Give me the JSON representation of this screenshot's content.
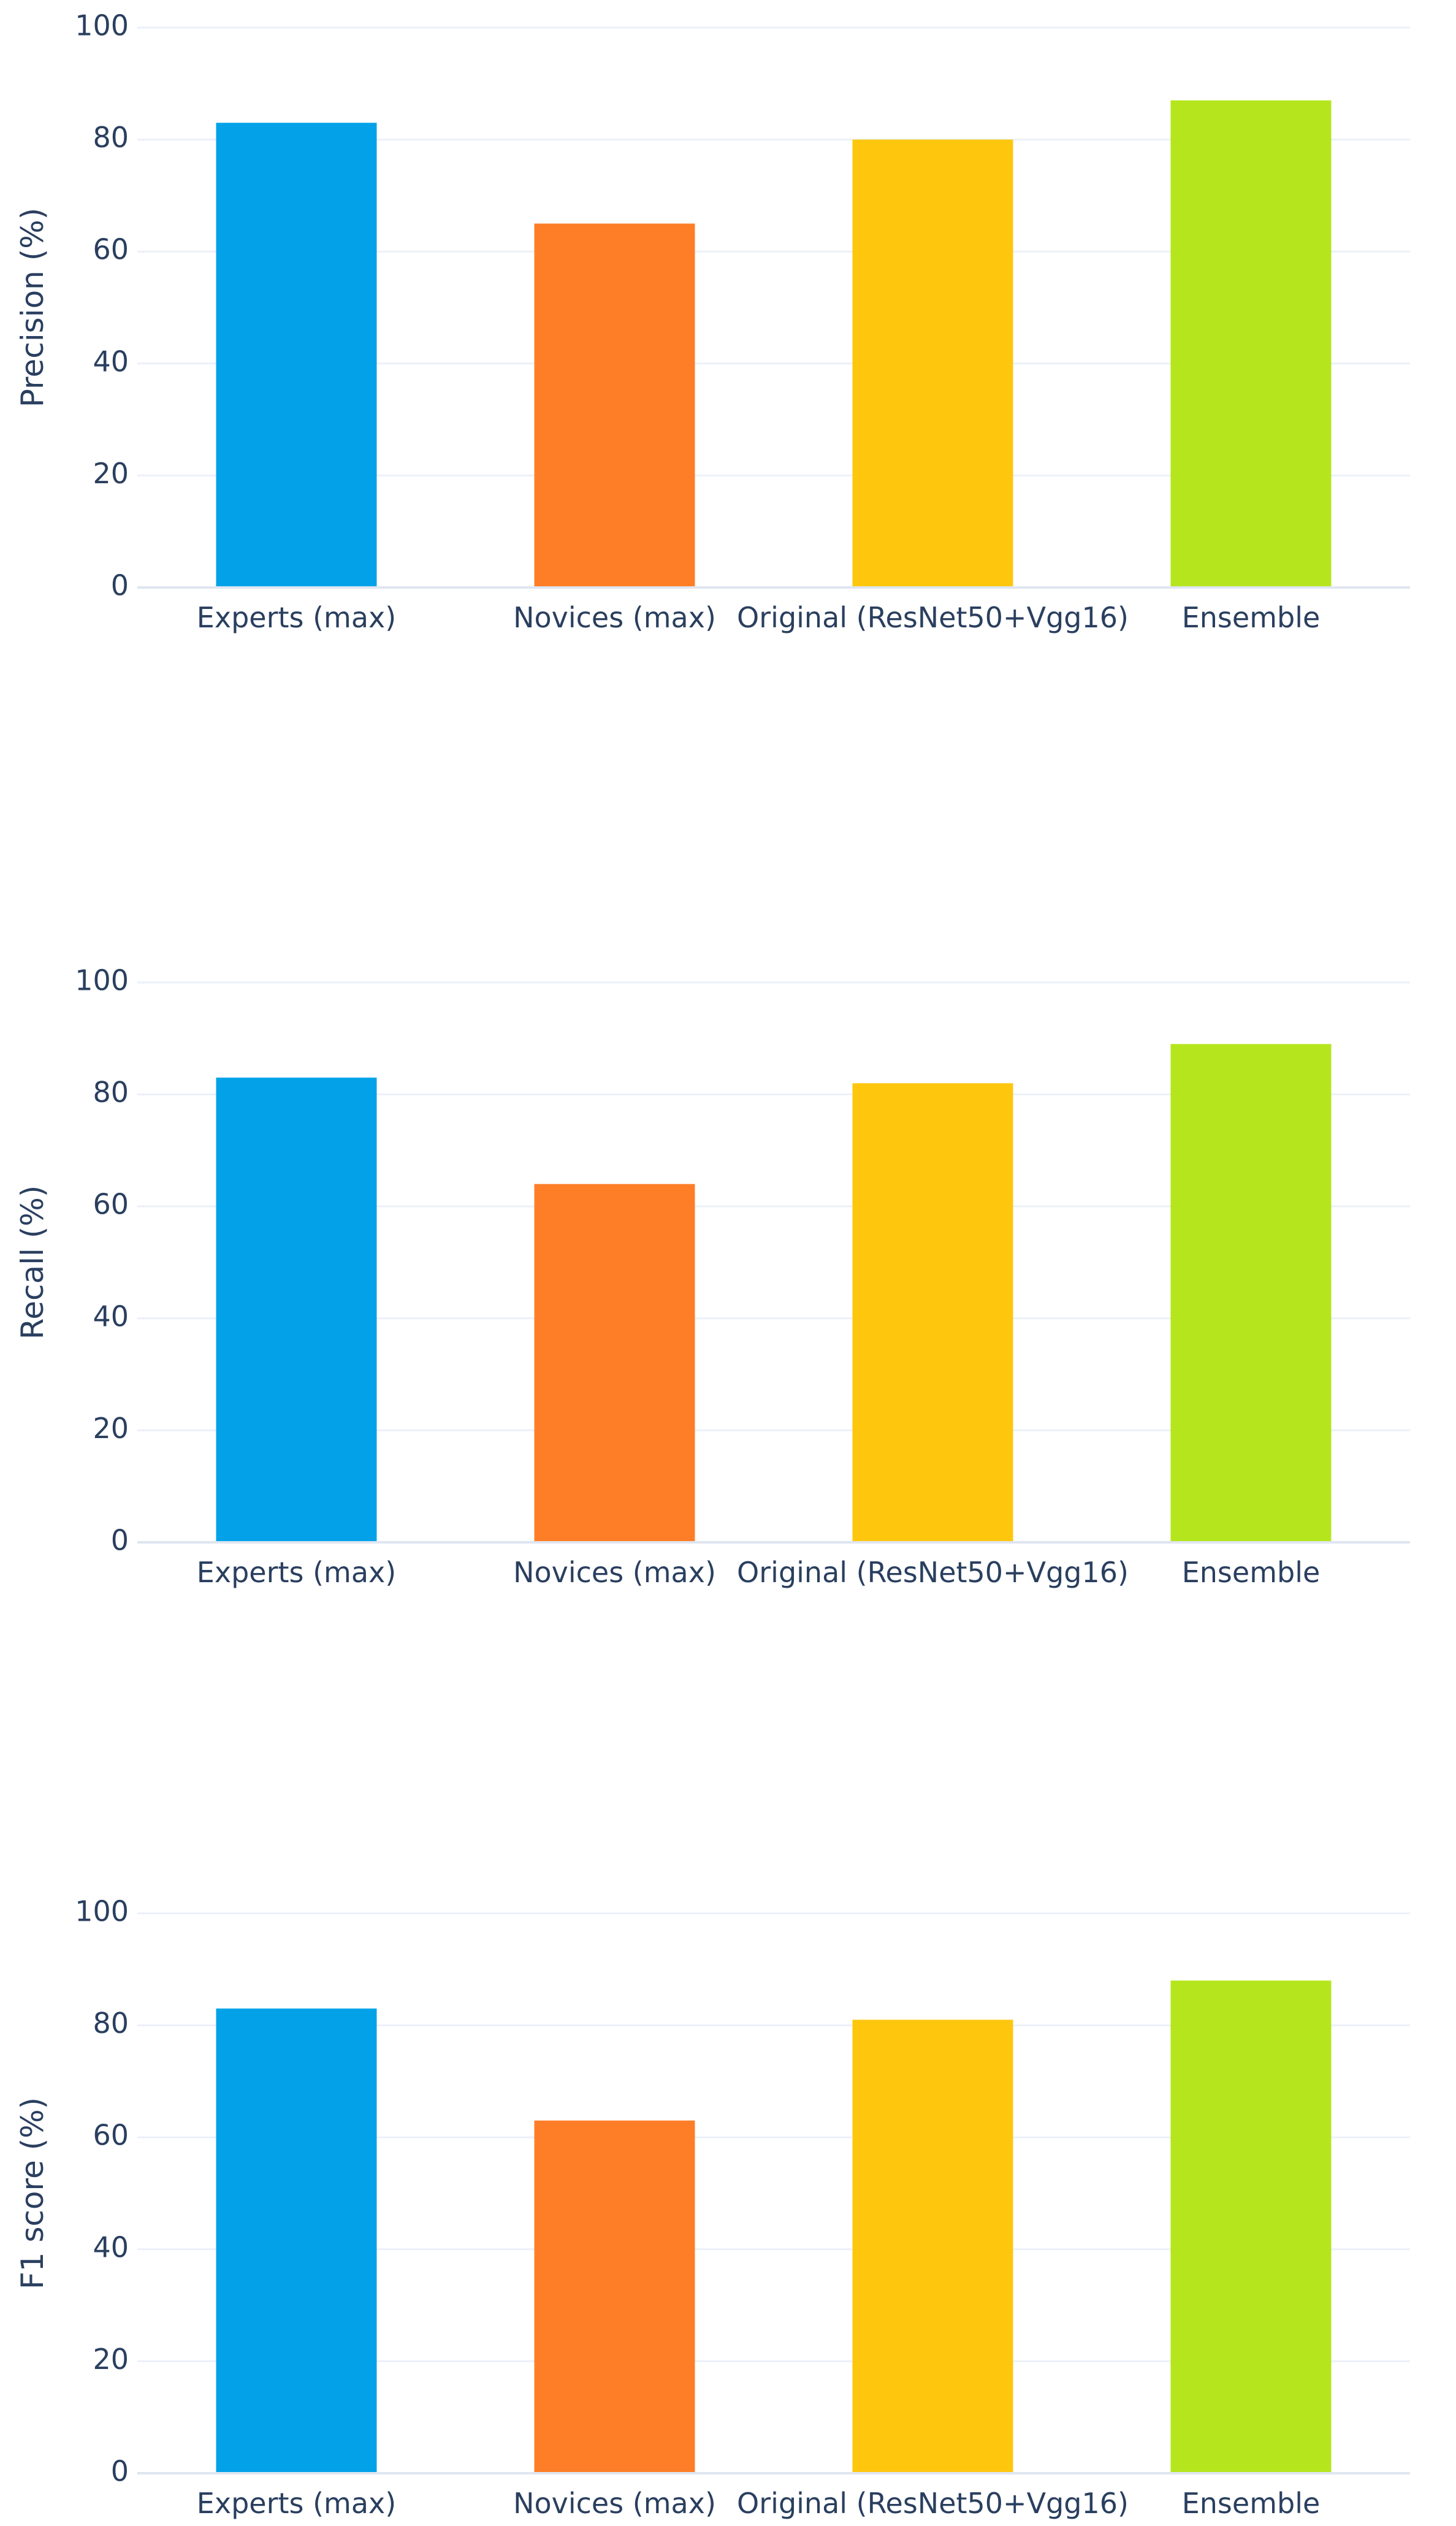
{
  "chart_data": [
    {
      "type": "bar",
      "title": "",
      "xlabel": "",
      "ylabel": "Precision (%)",
      "ylim": [
        0,
        100
      ],
      "yticks": [
        0,
        20,
        40,
        60,
        80,
        100
      ],
      "grid": true,
      "categories": [
        "Experts (max)",
        "Novices (max)",
        "Original (ResNet50+Vgg16)",
        "Ensemble"
      ],
      "values": [
        83,
        65,
        80,
        87
      ],
      "colors": [
        "#03a2e8",
        "#fe7e27",
        "#fec70e",
        "#b5e61d"
      ]
    },
    {
      "type": "bar",
      "title": "",
      "xlabel": "",
      "ylabel": "Recall (%)",
      "ylim": [
        0,
        100
      ],
      "yticks": [
        0,
        20,
        40,
        60,
        80,
        100
      ],
      "grid": true,
      "categories": [
        "Experts (max)",
        "Novices (max)",
        "Original (ResNet50+Vgg16)",
        "Ensemble"
      ],
      "values": [
        83,
        64,
        82,
        89
      ],
      "colors": [
        "#03a2e8",
        "#fe7e27",
        "#fec70e",
        "#b5e61d"
      ]
    },
    {
      "type": "bar",
      "title": "",
      "xlabel": "",
      "ylabel": "F1 score (%)",
      "ylim": [
        0,
        100
      ],
      "yticks": [
        0,
        20,
        40,
        60,
        80,
        100
      ],
      "grid": true,
      "categories": [
        "Experts (max)",
        "Novices (max)",
        "Original (ResNet50+Vgg16)",
        "Ensemble"
      ],
      "values": [
        83,
        63,
        81,
        88
      ],
      "colors": [
        "#03a2e8",
        "#fe7e27",
        "#fec70e",
        "#b5e61d"
      ]
    }
  ]
}
